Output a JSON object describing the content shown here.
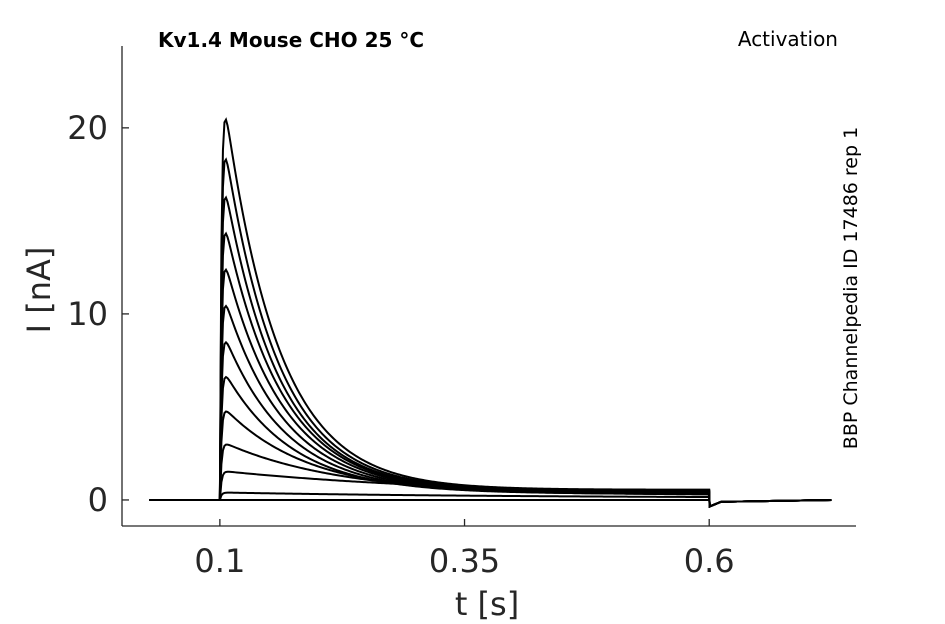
{
  "chart_data": {
    "type": "line",
    "title": "Kv1.4  Mouse  CHO  25 °C",
    "subtitle": "Activation",
    "side_label": "BBP Channelpedia ID 17486 rep 1",
    "xlabel": "t [s]",
    "ylabel": "I [nA]",
    "xlim": [
      0.0,
      0.75
    ],
    "ylim": [
      -1.4,
      24.4
    ],
    "xticks": [
      0.1,
      0.35,
      0.6
    ],
    "xtick_labels": [
      "0.1",
      "0.35",
      "0.6"
    ],
    "yticks": [
      0,
      10,
      20
    ],
    "ytick_labels": [
      "0",
      "10",
      "20"
    ],
    "grid": false,
    "legend": "none",
    "protocol": {
      "baseline_start": 0.028,
      "step_on": 0.1,
      "step_off": 0.6,
      "end": 0.725
    },
    "series": [
      {
        "values": {
          "peak": 0.0,
          "tau": 0.3,
          "end": 0.0
        }
      },
      {
        "values": {
          "peak": 0.4,
          "tau": 0.3,
          "end": 0.1
        }
      },
      {
        "values": {
          "peak": 1.55,
          "tau": 0.25,
          "end": 0.2
        }
      },
      {
        "values": {
          "peak": 3.1,
          "tau": 0.12,
          "end": 0.25
        }
      },
      {
        "values": {
          "peak": 5.0,
          "tau": 0.085,
          "end": 0.3
        }
      },
      {
        "values": {
          "peak": 7.0,
          "tau": 0.07,
          "end": 0.33
        }
      },
      {
        "values": {
          "peak": 9.0,
          "tau": 0.065,
          "end": 0.36
        }
      },
      {
        "values": {
          "peak": 11.1,
          "tau": 0.062,
          "end": 0.39
        }
      },
      {
        "values": {
          "peak": 13.2,
          "tau": 0.06,
          "end": 0.42
        }
      },
      {
        "values": {
          "peak": 15.3,
          "tau": 0.058,
          "end": 0.45
        }
      },
      {
        "values": {
          "peak": 17.4,
          "tau": 0.056,
          "end": 0.48
        }
      },
      {
        "values": {
          "peak": 19.6,
          "tau": 0.055,
          "end": 0.52
        }
      },
      {
        "values": {
          "peak": 21.9,
          "tau": 0.055,
          "end": 0.55
        }
      }
    ]
  }
}
